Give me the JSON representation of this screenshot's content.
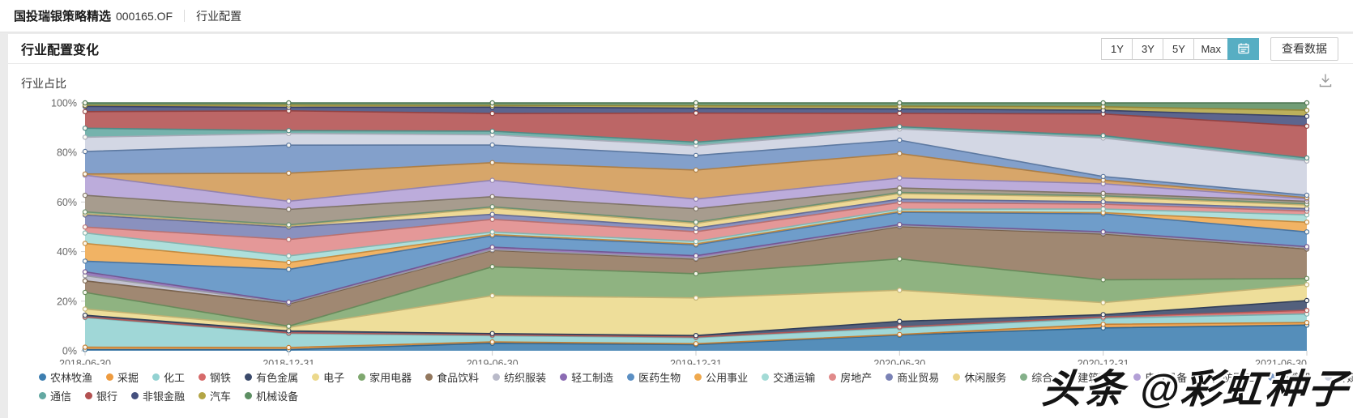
{
  "page": {
    "background": "#ebebeb",
    "accent_color": "#57aec3"
  },
  "header": {
    "fund_name": "国投瑞银策略精选",
    "fund_code": "000165.OF",
    "breadcrumb": "行业配置"
  },
  "panel": {
    "title": "行业配置变化",
    "range_buttons": [
      "1Y",
      "3Y",
      "5Y",
      "Max"
    ],
    "selected_control": "calendar",
    "view_data_label": "查看数据"
  },
  "chart_header": {
    "title": "行业占比"
  },
  "watermark": {
    "text": "头条 @彩虹种子"
  },
  "chart_data": {
    "type": "area",
    "stacked": true,
    "normalized_to_percent": true,
    "title": "行业占比",
    "legend_position": "bottom",
    "grid": false,
    "ylim": [
      0,
      100
    ],
    "yticks": [
      "0%",
      "20%",
      "40%",
      "60%",
      "80%",
      "100%"
    ],
    "x": [
      "2018-06-30",
      "2018-12-31",
      "2019-06-30",
      "2019-12-31",
      "2020-06-30",
      "2020-12-31",
      "2021-06-30"
    ],
    "legend_rows": [
      22,
      5
    ],
    "series": [
      {
        "name": "农林牧渔",
        "color": "#3d7eb0",
        "values": [
          0.5,
          0.5,
          3.0,
          2.5,
          7.0,
          9.5,
          10.5
        ]
      },
      {
        "name": "采掘",
        "color": "#ee9b3f",
        "values": [
          1.0,
          0.9,
          0.5,
          0.4,
          0.3,
          1.5,
          1.0
        ]
      },
      {
        "name": "化工",
        "color": "#93d2d2",
        "values": [
          12.5,
          6.0,
          2.5,
          2.5,
          3.0,
          2.5,
          3.5
        ]
      },
      {
        "name": "钢铁",
        "color": "#d66a6a",
        "values": [
          0.3,
          0.3,
          0.3,
          0.3,
          0.4,
          0.5,
          1.5
        ]
      },
      {
        "name": "有色金属",
        "color": "#3b4a6b",
        "values": [
          0.7,
          0.8,
          0.5,
          0.6,
          2.5,
          1.0,
          4.0
        ]
      },
      {
        "name": "电子",
        "color": "#ecd98c",
        "values": [
          2.6,
          1.5,
          15.0,
          15.5,
          14.0,
          5.0,
          6.5
        ]
      },
      {
        "name": "家用电器",
        "color": "#7fa86f",
        "values": [
          7.0,
          0.5,
          11.5,
          10.0,
          14.0,
          9.5,
          2.5
        ]
      },
      {
        "name": "食品饮料",
        "color": "#93785e",
        "values": [
          4.9,
          9.5,
          6.5,
          6.0,
          14.5,
          19.0,
          12.0
        ]
      },
      {
        "name": "纺织服装",
        "color": "#b9bac9",
        "values": [
          2.2,
          0.4,
          0.3,
          0.4,
          0.4,
          0.4,
          0.5
        ]
      },
      {
        "name": "轻工制造",
        "color": "#8b6bb3",
        "values": [
          1.6,
          0.4,
          1.0,
          1.0,
          0.5,
          0.5,
          0.5
        ]
      },
      {
        "name": "医药生物",
        "color": "#5b8fc3",
        "values": [
          4.5,
          14.0,
          4.5,
          4.5,
          5.5,
          7.5,
          6.0
        ]
      },
      {
        "name": "公用事业",
        "color": "#efa94e",
        "values": [
          7.5,
          3.0,
          0.5,
          0.4,
          0.4,
          0.5,
          4.0
        ]
      },
      {
        "name": "交通运输",
        "color": "#a3dbd6",
        "values": [
          4.4,
          2.8,
          1.0,
          1.0,
          1.0,
          1.5,
          3.0
        ]
      },
      {
        "name": "房地产",
        "color": "#e08a8a",
        "values": [
          2.5,
          7.0,
          5.0,
          4.0,
          3.0,
          2.0,
          1.5
        ]
      },
      {
        "name": "商业贸易",
        "color": "#7a82b5",
        "values": [
          5.1,
          5.3,
          2.0,
          1.5,
          1.5,
          1.0,
          1.0
        ]
      },
      {
        "name": "休闲服务",
        "color": "#ecd488",
        "values": [
          0.5,
          0.5,
          2.5,
          2.0,
          2.5,
          2.0,
          1.5
        ]
      },
      {
        "name": "综合",
        "color": "#84b08a",
        "values": [
          0.8,
          0.5,
          0.5,
          0.5,
          0.5,
          0.5,
          0.5
        ]
      },
      {
        "name": "建筑装饰",
        "color": "#9b8e7e",
        "values": [
          7.0,
          6.6,
          4.0,
          5.5,
          2.0,
          1.0,
          1.0
        ]
      },
      {
        "name": "电气设备",
        "color": "#b3a0d6",
        "values": [
          8.5,
          3.5,
          6.5,
          4.0,
          4.5,
          4.0,
          1.0
        ]
      },
      {
        "name": "国防军工",
        "color": "#d29a55",
        "values": [
          0.5,
          12.0,
          7.0,
          12.0,
          11.0,
          1.5,
          0.5
        ]
      },
      {
        "name": "计算机",
        "color": "#7293c4",
        "values": [
          9.5,
          12.0,
          7.0,
          6.0,
          6.0,
          1.5,
          1.0
        ]
      },
      {
        "name": "传媒",
        "color": "#cdd1e0",
        "values": [
          6.0,
          5.0,
          4.0,
          4.0,
          5.0,
          16.0,
          14.0
        ]
      },
      {
        "name": "通信",
        "color": "#63a8a2",
        "values": [
          3.8,
          1.2,
          1.5,
          1.5,
          1.0,
          1.0,
          1.2
        ]
      },
      {
        "name": "银行",
        "color": "#b35151",
        "values": [
          7.0,
          8.5,
          7.0,
          12.0,
          6.0,
          9.0,
          13.0
        ]
      },
      {
        "name": "非银金融",
        "color": "#45507e",
        "values": [
          2.2,
          1.5,
          2.5,
          2.0,
          2.0,
          1.5,
          4.0
        ]
      },
      {
        "name": "汽车",
        "color": "#b3a545",
        "values": [
          0.5,
          1.0,
          0.7,
          1.0,
          1.2,
          1.5,
          2.5
        ]
      },
      {
        "name": "机械设备",
        "color": "#5d8f63",
        "values": [
          1.0,
          0.9,
          1.0,
          1.2,
          1.5,
          1.6,
          3.0
        ]
      }
    ]
  }
}
